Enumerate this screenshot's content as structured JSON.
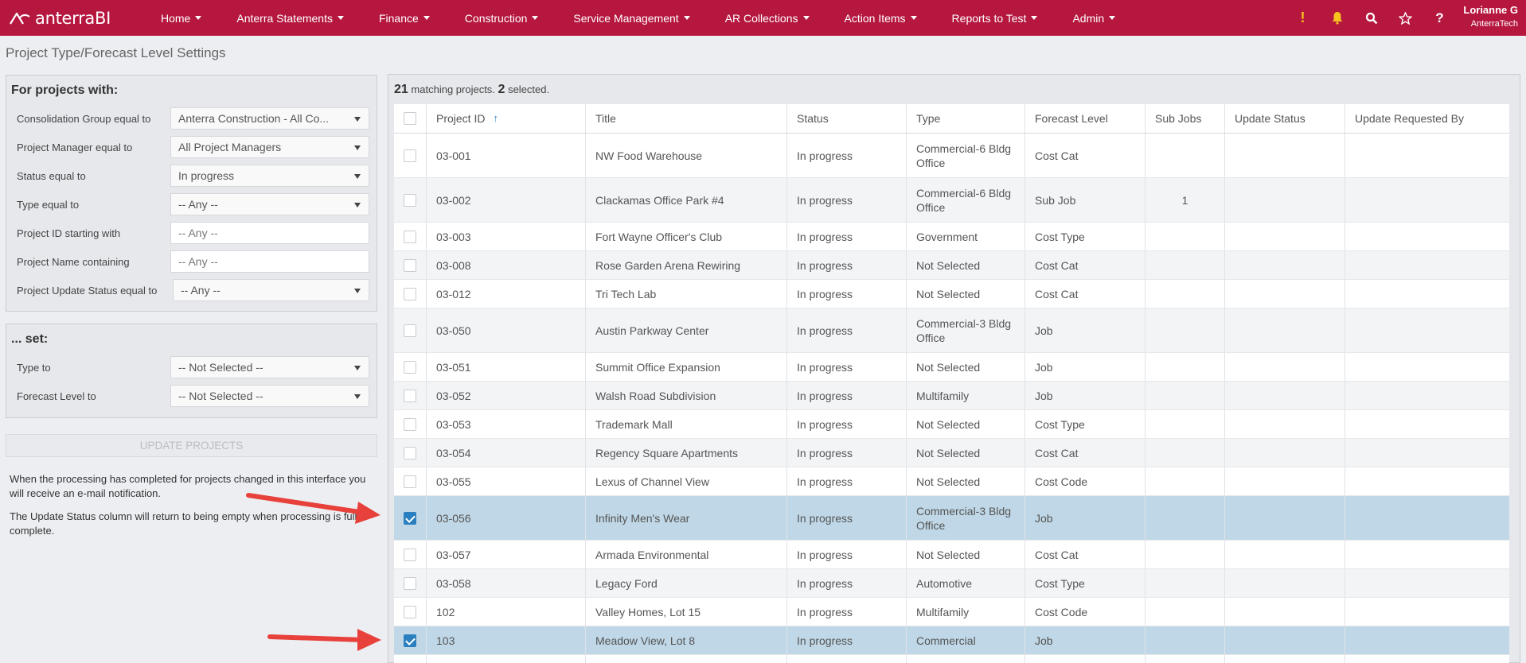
{
  "app": {
    "logo_text": "anterraBI"
  },
  "nav": [
    {
      "label": "Home"
    },
    {
      "label": "Anterra Statements"
    },
    {
      "label": "Finance"
    },
    {
      "label": "Construction"
    },
    {
      "label": "Service Management"
    },
    {
      "label": "AR Collections"
    },
    {
      "label": "Action Items"
    },
    {
      "label": "Reports to Test"
    },
    {
      "label": "Admin"
    }
  ],
  "header_icons": {
    "warning": "!",
    "bell": "bell-icon",
    "search": "search-icon",
    "star": "star-icon",
    "help": "?"
  },
  "user": {
    "name": "Lorianne G",
    "org": "AnterraTech"
  },
  "page_title": "Project Type/Forecast Level Settings",
  "filters": {
    "heading": "For projects with:",
    "rows": [
      {
        "label": "Consolidation Group  equal to",
        "value": "Anterra Construction - All Co..."
      },
      {
        "label": "Project Manager  equal to",
        "value": "All Project Managers"
      },
      {
        "label": "Status  equal to",
        "value": "In progress"
      },
      {
        "label": "Type  equal to",
        "value": "-- Any --"
      },
      {
        "label": "Project ID  starting with",
        "placeholder": "-- Any --"
      },
      {
        "label": "Project Name  containing",
        "placeholder": "-- Any --"
      },
      {
        "label": "Project Update Status  equal to",
        "value": "-- Any --"
      }
    ]
  },
  "set": {
    "heading": "... set:",
    "rows": [
      {
        "label": "Type  to",
        "value": "-- Not Selected --"
      },
      {
        "label": "Forecast Level  to",
        "value": "-- Not Selected --"
      }
    ]
  },
  "update_button": "UPDATE PROJECTS",
  "notes": [
    "When the processing has completed for projects changed in this interface you will receive an e-mail notification.",
    "The Update Status column will return to being empty when processing is fully complete."
  ],
  "summary": {
    "matching": "21",
    "matching_text": "matching projects.",
    "selected": "2",
    "selected_text": "selected."
  },
  "columns": [
    "Project ID",
    "Title",
    "Status",
    "Type",
    "Forecast Level",
    "Sub Jobs",
    "Update Status",
    "Update Requested By"
  ],
  "rows": [
    {
      "id": "03-001",
      "title": "NW Food Warehouse",
      "status": "In progress",
      "type": "Commercial-6 Bldg Office",
      "forecast": "Cost Cat",
      "subjobs": "",
      "checked": false
    },
    {
      "id": "03-002",
      "title": "Clackamas Office Park #4",
      "status": "In progress",
      "type": "Commercial-6 Bldg Office",
      "forecast": "Sub Job",
      "subjobs": "1",
      "checked": false
    },
    {
      "id": "03-003",
      "title": "Fort Wayne Officer's Club",
      "status": "In progress",
      "type": "Government",
      "forecast": "Cost Type",
      "subjobs": "",
      "checked": false
    },
    {
      "id": "03-008",
      "title": "Rose Garden Arena Rewiring",
      "status": "In progress",
      "type": "Not Selected",
      "forecast": "Cost Cat",
      "subjobs": "",
      "checked": false
    },
    {
      "id": "03-012",
      "title": "Tri Tech Lab",
      "status": "In progress",
      "type": "Not Selected",
      "forecast": "Cost Cat",
      "subjobs": "",
      "checked": false
    },
    {
      "id": "03-050",
      "title": "Austin Parkway Center",
      "status": "In progress",
      "type": "Commercial-3 Bldg Office",
      "forecast": "Job",
      "subjobs": "",
      "checked": false
    },
    {
      "id": "03-051",
      "title": "Summit Office Expansion",
      "status": "In progress",
      "type": "Not Selected",
      "forecast": "Job",
      "subjobs": "",
      "checked": false
    },
    {
      "id": "03-052",
      "title": "Walsh Road Subdivision",
      "status": "In progress",
      "type": "Multifamily",
      "forecast": "Job",
      "subjobs": "",
      "checked": false
    },
    {
      "id": "03-053",
      "title": "Trademark Mall",
      "status": "In progress",
      "type": "Not Selected",
      "forecast": "Cost Type",
      "subjobs": "",
      "checked": false
    },
    {
      "id": "03-054",
      "title": "Regency Square Apartments",
      "status": "In progress",
      "type": "Not Selected",
      "forecast": "Cost Cat",
      "subjobs": "",
      "checked": false
    },
    {
      "id": "03-055",
      "title": "Lexus of Channel View",
      "status": "In progress",
      "type": "Not Selected",
      "forecast": "Cost Code",
      "subjobs": "",
      "checked": false
    },
    {
      "id": "03-056",
      "title": "Infinity Men's Wear",
      "status": "In progress",
      "type": "Commercial-3 Bldg Office",
      "forecast": "Job",
      "subjobs": "",
      "checked": true
    },
    {
      "id": "03-057",
      "title": "Armada Environmental",
      "status": "In progress",
      "type": "Not Selected",
      "forecast": "Cost Cat",
      "subjobs": "",
      "checked": false
    },
    {
      "id": "03-058",
      "title": "Legacy Ford",
      "status": "In progress",
      "type": "Automotive",
      "forecast": "Cost Type",
      "subjobs": "",
      "checked": false
    },
    {
      "id": "102",
      "title": "Valley Homes, Lot 15",
      "status": "In progress",
      "type": "Multifamily",
      "forecast": "Cost Code",
      "subjobs": "",
      "checked": false
    },
    {
      "id": "103",
      "title": "Meadow View, Lot 8",
      "status": "In progress",
      "type": "Commercial",
      "forecast": "Job",
      "subjobs": "",
      "checked": true
    },
    {
      "id": "",
      "title": "",
      "status": "",
      "type": "",
      "forecast": "",
      "subjobs": "",
      "checked": false
    }
  ],
  "colors": {
    "brand": "#b5173f",
    "selected_row": "#bfd7e6",
    "checkbox_on": "#2a7fc0",
    "arrow": "#e8403a"
  }
}
